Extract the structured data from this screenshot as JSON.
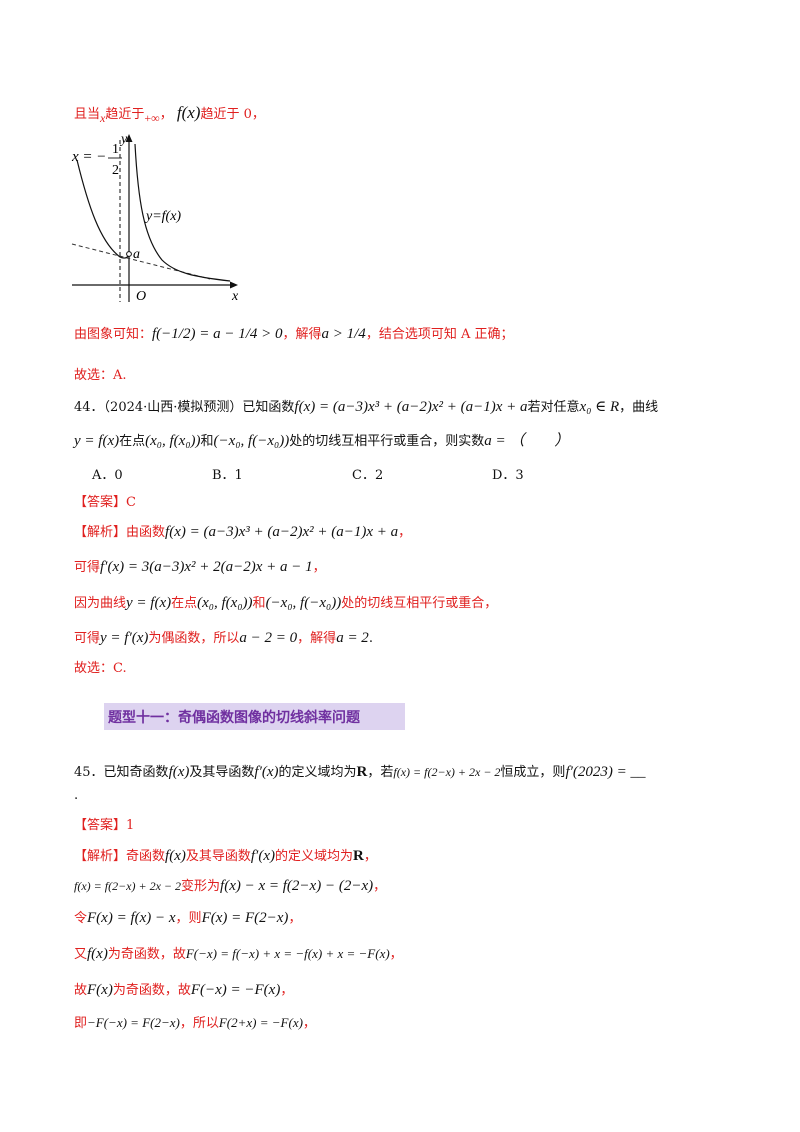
{
  "top_note": {
    "text_a": "且当",
    "var_x": "x",
    "text_b": "趋近于",
    "inf": "+∞",
    "text_c": "，",
    "fx": "f(x)",
    "text_d": "趋近于 0，"
  },
  "graph": {
    "asymptote_label": "x = −",
    "asymptote_num": "1",
    "asymptote_den": "2",
    "curve_label": "y=f(x)",
    "point_label": "a",
    "origin_label": "O",
    "x_axis_label": "x",
    "y_axis_label": "y"
  },
  "conclusion": {
    "text_a": "由图象可知：",
    "expr": "f(−1/2) = a − 1/4 > 0",
    "text_b": "，解得",
    "ineq": "a > 1/4",
    "text_c": "，结合选项可知 A 正确；"
  },
  "choice_43": "故选：A.",
  "q44": {
    "number": "44．",
    "source": "（2024·山西·模拟预测）已知函数",
    "func": "f(x) = (a−3)x³ + (a−2)x² + (a−1)x + a",
    "text_b": "若对任意",
    "cond": "x₀ ∈ R",
    "text_c": "，曲线",
    "line2_a": "y = f(x)",
    "line2_b": "在点",
    "pt1": "(x₀, f(x₀))",
    "line2_c": "和",
    "pt2": "(−x₀, f(−x₀))",
    "line2_d": "处的切线互相平行或重合，则实数",
    "line2_e": "a = （　　）",
    "options": [
      "A．0",
      "B．1",
      "C．2",
      "D．3"
    ],
    "answer_tag": "【答案】",
    "answer": "C",
    "analysis_tag": "【解析】",
    "s1_a": "由函数",
    "s1_expr": "f(x) = (a−3)x³ + (a−2)x² + (a−1)x + a",
    "s1_b": "，",
    "s2_a": "可得",
    "s2_expr": "f′(x) = 3(a−3)x² + 2(a−2)x + a − 1",
    "s2_b": "，",
    "s3_a": "因为曲线",
    "s3_b": "y = f(x)",
    "s3_c": "在点",
    "s3_d": "(x₀, f(x₀))",
    "s3_e": "和",
    "s3_f": "(−x₀, f(−x₀))",
    "s3_g": "处的切线互相平行或重合，",
    "s4_a": "可得",
    "s4_b": "y = f′(x)",
    "s4_c": "为偶函数，所以",
    "s4_d": "a − 2 = 0",
    "s4_e": "，解得",
    "s4_f": "a = 2",
    "s4_g": ".",
    "choice": "故选：C."
  },
  "section_title": "题型十一：奇偶函数图像的切线斜率问题",
  "q45": {
    "number": "45．",
    "text_a": "已知奇函数",
    "fx": "f(x)",
    "text_b": "及其导函数",
    "fpx": "f′(x)",
    "text_c": "的定义域均为",
    "R": "R",
    "text_d": "，若",
    "cond": "f(x) = f(2−x) + 2x − 2",
    "text_e": "恒成立，则",
    "ask": "f′(2023) = __",
    "tail": ".",
    "answer_tag": "【答案】",
    "answer": "1",
    "analysis_tag": "【解析】",
    "s1_a": "奇函数",
    "s1_b": "f(x)",
    "s1_c": "及其导函数",
    "s1_d": "f′(x)",
    "s1_e": "的定义域均为",
    "s1_f": "R",
    "s1_g": "，",
    "s2_a": "f(x) = f(2−x) + 2x − 2",
    "s2_b": "变形为",
    "s2_c": "f(x) − x = f(2−x) − (2−x)",
    "s2_d": "，",
    "s3_a": "令",
    "s3_b": "F(x) = f(x) − x",
    "s3_c": "，则",
    "s3_d": "F(x) = F(2−x)",
    "s3_e": "，",
    "s4_a": "又",
    "s4_b": "f(x)",
    "s4_c": "为奇函数，故",
    "s4_d": "F(−x) = f(−x) + x = −f(x) + x = −F(x)",
    "s4_e": "，",
    "s5_a": "故",
    "s5_b": "F(x)",
    "s5_c": "为奇函数，故",
    "s5_d": "F(−x) = −F(x)",
    "s5_e": "，",
    "s6_a": "即",
    "s6_b": "−F(−x) = F(2−x)",
    "s6_c": "，所以",
    "s6_d": "F(2+x) = −F(x)",
    "s6_e": "，"
  }
}
